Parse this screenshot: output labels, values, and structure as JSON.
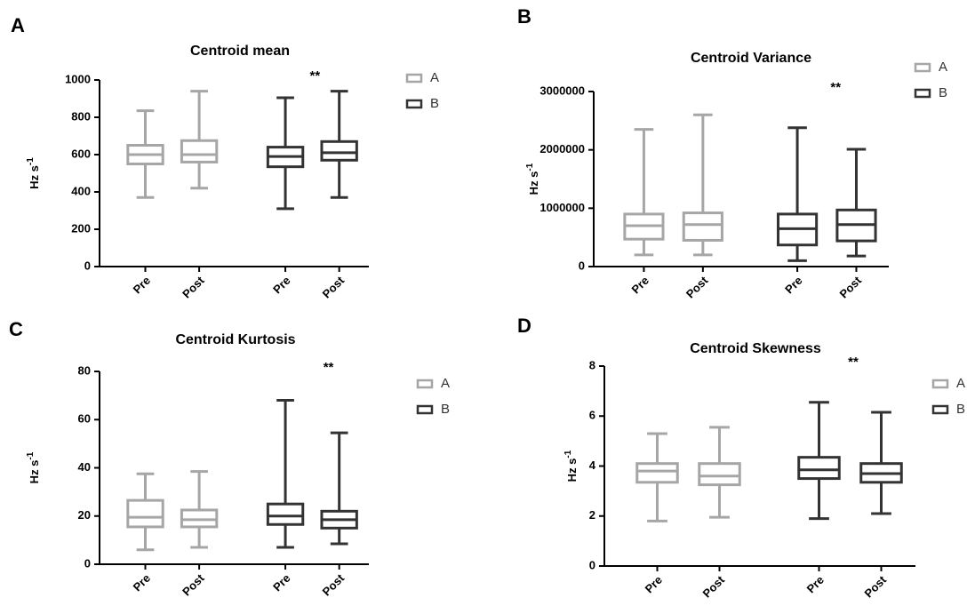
{
  "chart_data": [
    {
      "type": "box",
      "panel": "A",
      "title": "Centroid mean",
      "ylabel": {
        "text": "Hz s",
        "superscript": "-1"
      },
      "categories": [
        "Pre",
        "Post",
        "Pre",
        "Post"
      ],
      "ylim": [
        0,
        1000
      ],
      "yticks": [
        0,
        200,
        400,
        600,
        800,
        1000
      ],
      "annotation": "**",
      "series": [
        {
          "name": "A",
          "color": "#a6a6a6",
          "values": [
            {
              "min": 370,
              "q1": 550,
              "median": 600,
              "q3": 650,
              "max": 835
            },
            {
              "min": 420,
              "q1": 560,
              "median": 600,
              "q3": 675,
              "max": 940
            },
            null,
            null
          ]
        },
        {
          "name": "B",
          "color": "#333333",
          "values": [
            null,
            null,
            {
              "min": 310,
              "q1": 535,
              "median": 590,
              "q3": 640,
              "max": 905
            },
            {
              "min": 370,
              "q1": 570,
              "median": 610,
              "q3": 670,
              "max": 940
            }
          ]
        }
      ]
    },
    {
      "type": "box",
      "panel": "B",
      "title": "Centroid Variance",
      "ylabel": {
        "text": "Hz s",
        "superscript": "-1"
      },
      "categories": [
        "Pre",
        "Post",
        "Pre",
        "Post"
      ],
      "ylim": [
        0,
        3000000
      ],
      "yticks": [
        0,
        1000000,
        2000000,
        3000000
      ],
      "annotation": "**",
      "series": [
        {
          "name": "A",
          "color": "#a6a6a6",
          "values": [
            {
              "min": 200000,
              "q1": 470000,
              "median": 700000,
              "q3": 900000,
              "max": 2350000
            },
            {
              "min": 200000,
              "q1": 450000,
              "median": 720000,
              "q3": 920000,
              "max": 2600000
            },
            null,
            null
          ]
        },
        {
          "name": "B",
          "color": "#333333",
          "values": [
            null,
            null,
            {
              "min": 100000,
              "q1": 370000,
              "median": 650000,
              "q3": 900000,
              "max": 2380000
            },
            {
              "min": 180000,
              "q1": 440000,
              "median": 720000,
              "q3": 970000,
              "max": 2010000
            }
          ]
        }
      ]
    },
    {
      "type": "box",
      "panel": "C",
      "title": "Centroid Kurtosis",
      "ylabel": {
        "text": "Hz s",
        "superscript": "-1"
      },
      "categories": [
        "Pre",
        "Post",
        "Pre",
        "Post"
      ],
      "ylim": [
        0,
        80
      ],
      "yticks": [
        0,
        20,
        40,
        60,
        80
      ],
      "annotation": "**",
      "series": [
        {
          "name": "A",
          "color": "#a6a6a6",
          "values": [
            {
              "min": 6,
              "q1": 15.5,
              "median": 19.5,
              "q3": 26.5,
              "max": 37.5
            },
            {
              "min": 7,
              "q1": 15.5,
              "median": 18.5,
              "q3": 22.5,
              "max": 38.5
            },
            null,
            null
          ]
        },
        {
          "name": "B",
          "color": "#333333",
          "values": [
            null,
            null,
            {
              "min": 7,
              "q1": 16.5,
              "median": 20,
              "q3": 25,
              "max": 68
            },
            {
              "min": 8.5,
              "q1": 15,
              "median": 18.5,
              "q3": 22,
              "max": 54.5
            }
          ]
        }
      ]
    },
    {
      "type": "box",
      "panel": "D",
      "title": "Centroid Skewness",
      "ylabel": {
        "text": "Hz s",
        "superscript": "-1"
      },
      "categories": [
        "Pre",
        "Post",
        "Pre",
        "Post"
      ],
      "ylim": [
        0,
        8
      ],
      "yticks": [
        0,
        2,
        4,
        6,
        8
      ],
      "annotation": "**",
      "series": [
        {
          "name": "A",
          "color": "#a6a6a6",
          "values": [
            {
              "min": 1.8,
              "q1": 3.35,
              "median": 3.8,
              "q3": 4.1,
              "max": 5.3
            },
            {
              "min": 1.95,
              "q1": 3.25,
              "median": 3.6,
              "q3": 4.1,
              "max": 5.55
            },
            null,
            null
          ]
        },
        {
          "name": "B",
          "color": "#333333",
          "values": [
            null,
            null,
            {
              "min": 1.9,
              "q1": 3.5,
              "median": 3.85,
              "q3": 4.35,
              "max": 6.55
            },
            {
              "min": 2.1,
              "q1": 3.35,
              "median": 3.7,
              "q3": 4.1,
              "max": 6.15
            }
          ]
        }
      ]
    }
  ]
}
